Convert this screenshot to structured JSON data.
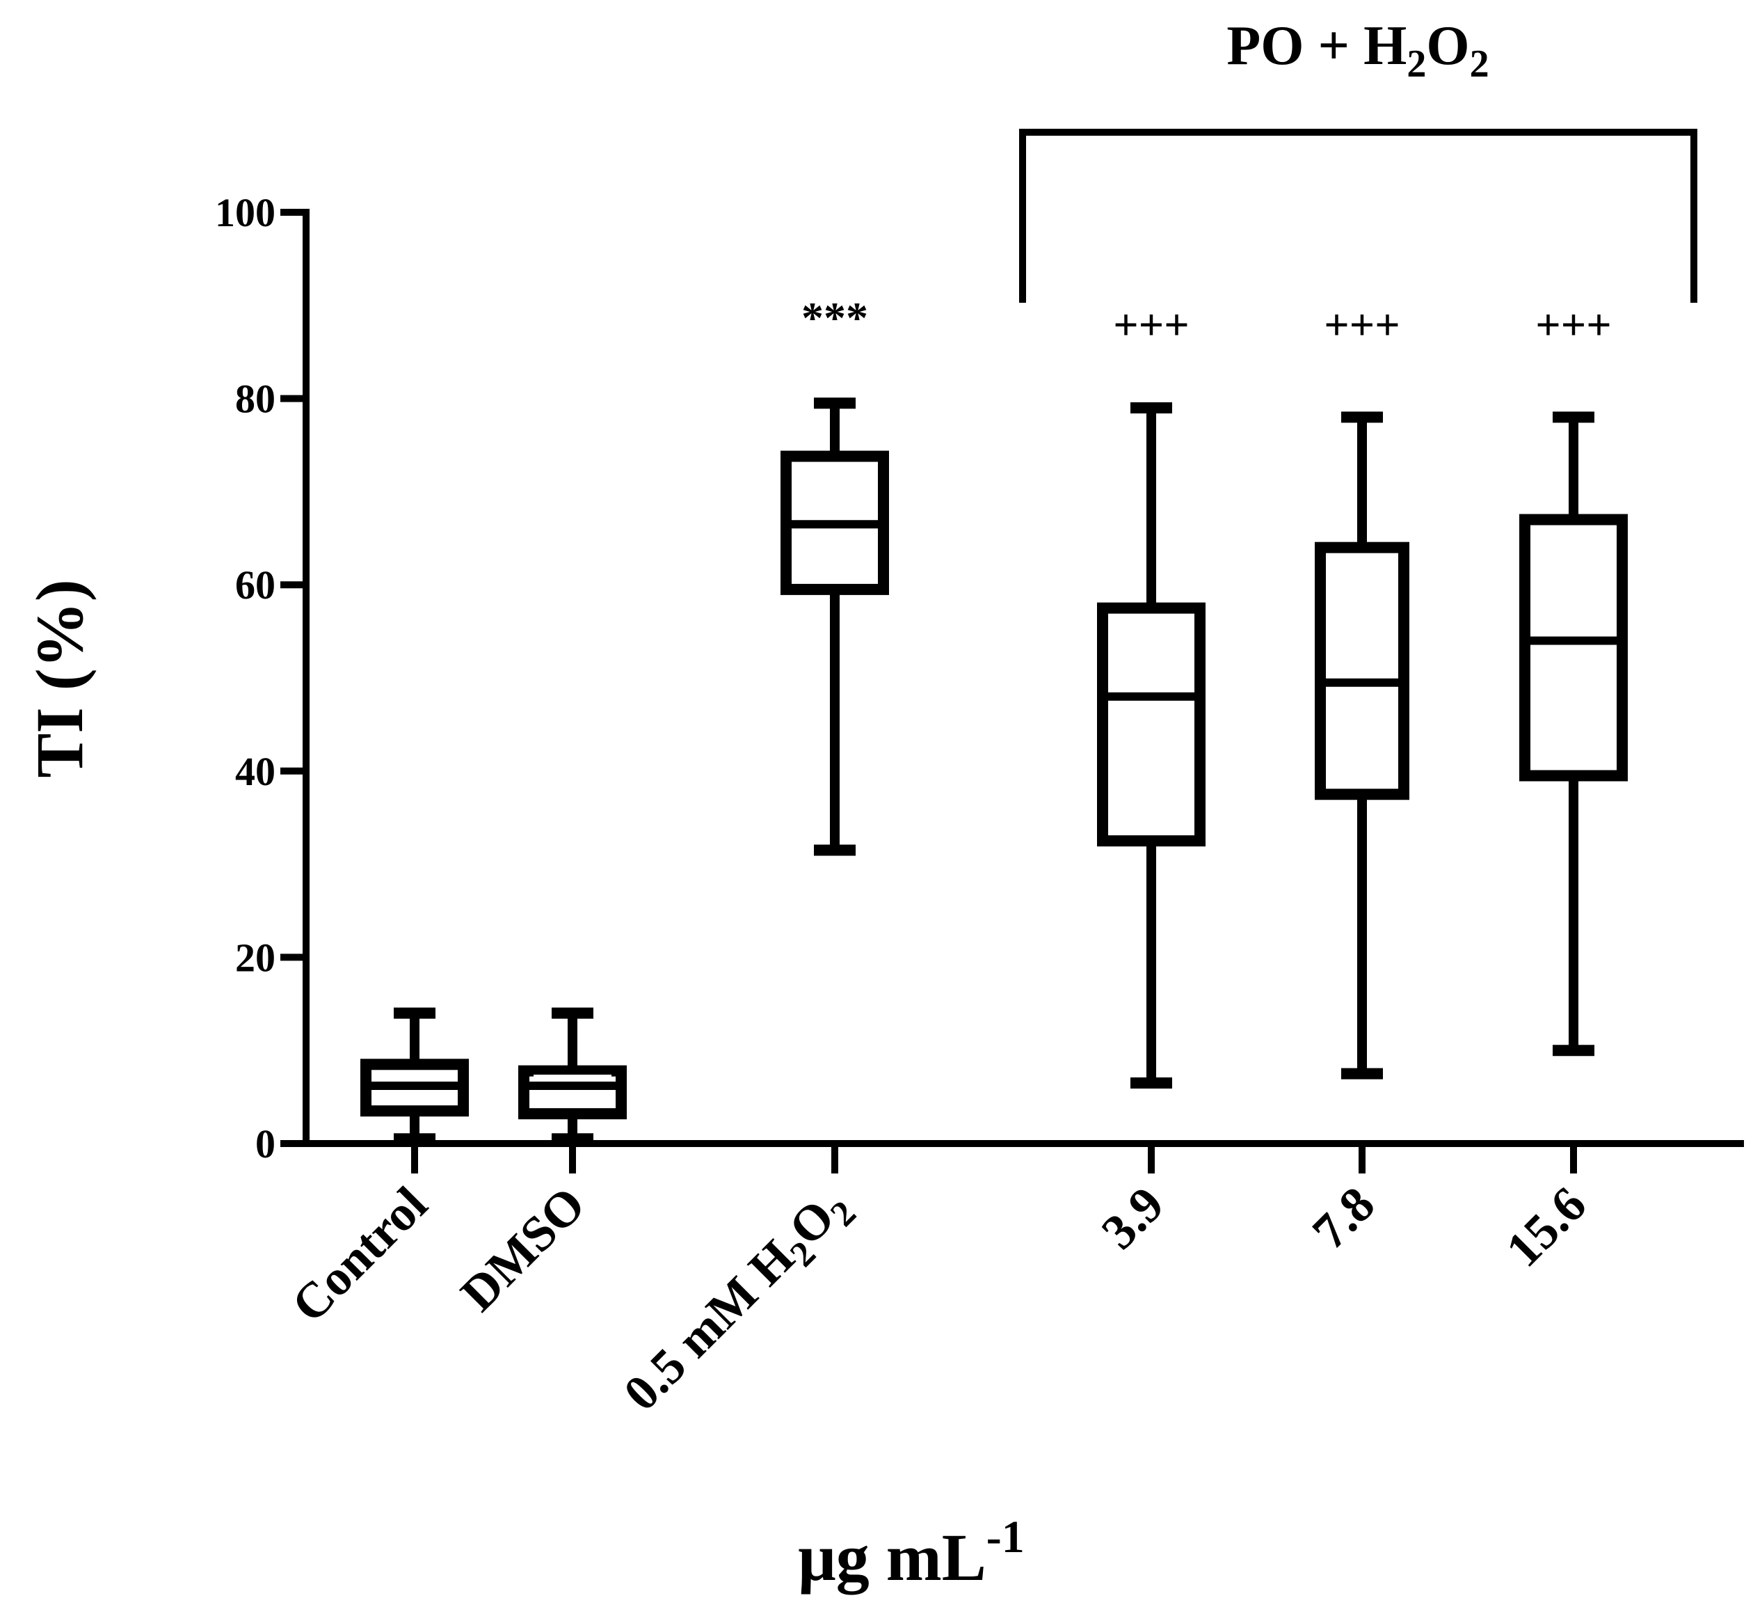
{
  "chart_data": {
    "type": "box",
    "title": "",
    "ylabel": "TI (%)",
    "xlabel": "μg mL",
    "xlabel_sup": "-1",
    "ylim": [
      0,
      100
    ],
    "yticks": [
      0,
      20,
      40,
      60,
      80,
      100
    ],
    "categories": [
      {
        "label": "Control",
        "sub": "",
        "suffix": ""
      },
      {
        "label": "DMSO",
        "sub": "",
        "suffix": ""
      },
      {
        "label": "0.5 mM H",
        "sub": "2",
        "suffix": "O",
        "sub2": "2"
      },
      {
        "label": "3.9",
        "sub": "",
        "suffix": ""
      },
      {
        "label": "7.8",
        "sub": "",
        "suffix": ""
      },
      {
        "label": "15.6",
        "sub": "",
        "suffix": ""
      }
    ],
    "series": [
      {
        "name": "Control",
        "min": 0.5,
        "q1": 3.5,
        "median": 6.2,
        "q3": 8.5,
        "max": 14,
        "annotation": ""
      },
      {
        "name": "DMSO",
        "min": 0.5,
        "q1": 3.2,
        "median": 6.2,
        "q3": 7.8,
        "max": 14,
        "annotation": ""
      },
      {
        "name": "0.5 mM H2O2",
        "min": 31.5,
        "q1": 59.5,
        "median": 66.5,
        "q3": 73.8,
        "max": 79.5,
        "annotation": "***"
      },
      {
        "name": "3.9",
        "min": 6.5,
        "q1": 32.5,
        "median": 48.0,
        "q3": 57.5,
        "max": 79.0,
        "annotation": "+++"
      },
      {
        "name": "7.8",
        "min": 7.5,
        "q1": 37.5,
        "median": 49.5,
        "q3": 64.0,
        "max": 78.0,
        "annotation": "+++"
      },
      {
        "name": "15.6",
        "min": 10.0,
        "q1": 39.5,
        "median": 54.0,
        "q3": 67.0,
        "max": 78.0,
        "annotation": "+++"
      }
    ],
    "bracket": {
      "label": "PO + H",
      "sub": "2",
      "suffix": "O",
      "sub2": "2",
      "spans": [
        "3.9",
        "7.8",
        "15.6"
      ]
    }
  }
}
